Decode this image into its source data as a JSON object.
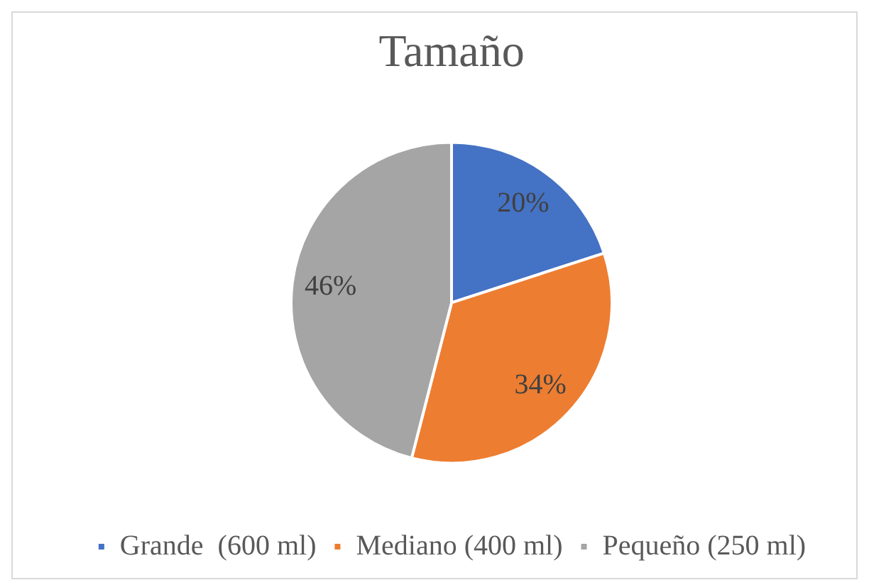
{
  "chart_data": {
    "type": "pie",
    "title": "Tamaño",
    "categories": [
      "Grande  (600 ml)",
      "Mediano (400 ml)",
      "Pequeño (250 ml)"
    ],
    "values": [
      20,
      34,
      46
    ],
    "colors": [
      "#4472c4",
      "#ed7d31",
      "#a5a5a5"
    ],
    "value_labels": [
      "20%",
      "34%",
      "46%"
    ],
    "legend": "bottom"
  }
}
